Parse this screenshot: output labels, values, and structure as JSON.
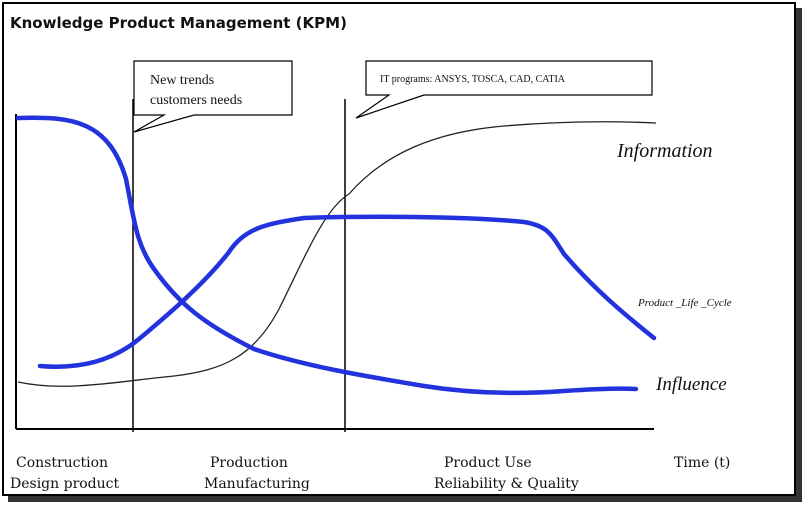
{
  "title": "Knowledge Product Management (KPM)",
  "callouts": {
    "left": [
      "New trends",
      "customers  needs"
    ],
    "right": "IT programs: ANSYS, TOSCA, CAD, CATIA"
  },
  "curve_labels": {
    "information": "Information",
    "plc": "Product _Life _Cycle",
    "influence": "Influence"
  },
  "x_axis": {
    "stages": [
      {
        "line1": "Construction",
        "line2": "Design product"
      },
      {
        "line1": "Production",
        "line2": "Manufacturing"
      },
      {
        "line1": "Product   Use",
        "line2": "Reliability & Quality"
      }
    ],
    "time_label": "Time (t)"
  },
  "colors": {
    "thick_curve": "#2233dd",
    "thin_curve": "#222222",
    "axis": "#000000"
  }
}
